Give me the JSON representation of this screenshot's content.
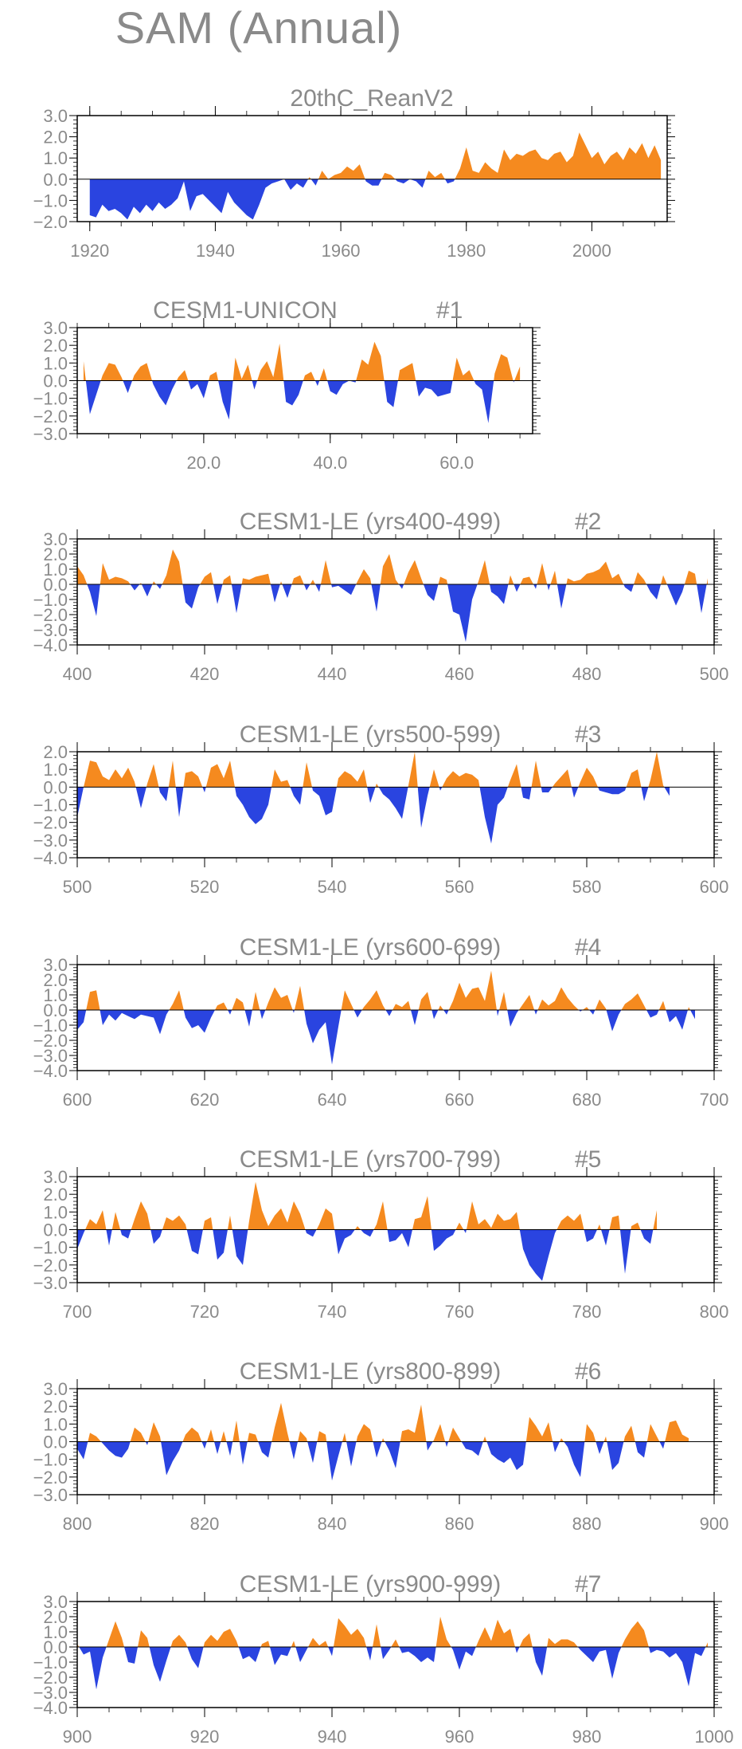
{
  "title": "SAM (Annual)",
  "colors": {
    "positive": "#f58a1f",
    "negative": "#2a44e0",
    "frame": "#000000",
    "text": "#8a8a8a"
  },
  "chart_data": [
    {
      "type": "area",
      "title": "20thC_ReanV2",
      "subtitle": "",
      "xlim": [
        1918,
        2012
      ],
      "ylim": [
        -2.0,
        3.0
      ],
      "yticks": [
        -2.0,
        -1.0,
        0.0,
        1.0,
        2.0,
        3.0
      ],
      "ytick_labels": [
        "−2.0",
        "−1.0",
        "0.0",
        "1.0",
        "2.0",
        "3.0"
      ],
      "xticks": [
        1920,
        1940,
        1960,
        1980,
        2000
      ],
      "xtick_labels": [
        "1920",
        "1940",
        "1960",
        "1980",
        "2000"
      ],
      "x_start": 1920,
      "values": [
        -1.7,
        -1.8,
        -1.2,
        -1.5,
        -1.4,
        -1.6,
        -1.9,
        -1.3,
        -1.6,
        -1.2,
        -1.5,
        -1.1,
        -1.4,
        -1.2,
        -0.9,
        -0.1,
        -1.5,
        -0.8,
        -0.7,
        -1.0,
        -1.3,
        -1.6,
        -0.6,
        -1.1,
        -1.4,
        -1.7,
        -1.9,
        -1.2,
        -0.4,
        -0.2,
        -0.1,
        0.0,
        -0.5,
        -0.2,
        -0.4,
        0.1,
        -0.3,
        0.4,
        0.0,
        0.2,
        0.3,
        0.6,
        0.4,
        0.7,
        -0.1,
        -0.3,
        -0.3,
        0.3,
        0.2,
        -0.1,
        -0.2,
        0.0,
        -0.1,
        -0.4,
        0.4,
        0.1,
        0.3,
        -0.2,
        -0.1,
        0.5,
        1.5,
        0.4,
        0.3,
        0.8,
        0.5,
        0.3,
        1.4,
        0.9,
        1.2,
        1.1,
        1.3,
        1.4,
        1.0,
        0.9,
        1.2,
        1.3,
        0.8,
        1.1,
        2.2,
        1.6,
        1.0,
        1.3,
        0.7,
        1.1,
        1.3,
        0.9,
        1.5,
        1.2,
        1.7,
        1.0,
        1.6,
        0.9
      ]
    },
    {
      "type": "area",
      "title": "CESM1-UNICON",
      "subtitle": "#1",
      "xlim": [
        0,
        72
      ],
      "ylim": [
        -3.0,
        3.0
      ],
      "yticks": [
        -3.0,
        -2.0,
        -1.0,
        0.0,
        1.0,
        2.0,
        3.0
      ],
      "ytick_labels": [
        "−3.0",
        "−2.0",
        "−1.0",
        "0.0",
        "1.0",
        "2.0",
        "3.0"
      ],
      "xticks": [
        20,
        40,
        60
      ],
      "xtick_labels": [
        "20.0",
        "40.0",
        "60.0"
      ],
      "x_start": 1,
      "values": [
        1.1,
        -1.9,
        -0.8,
        0.3,
        1.0,
        0.9,
        0.2,
        -0.7,
        0.3,
        0.8,
        1.0,
        -0.2,
        -0.9,
        -1.4,
        -0.5,
        0.2,
        0.6,
        -0.5,
        -0.2,
        -1.0,
        0.3,
        0.5,
        -1.2,
        -2.2,
        1.3,
        0.1,
        0.9,
        -0.5,
        0.6,
        1.1,
        0.2,
        2.1,
        -1.2,
        -1.4,
        -0.8,
        0.3,
        0.5,
        -0.3,
        0.7,
        -0.6,
        -0.8,
        -0.2,
        0.0,
        -0.1,
        1.2,
        0.9,
        2.2,
        1.4,
        -1.2,
        -1.5,
        0.6,
        0.8,
        1.0,
        -0.9,
        -0.4,
        -0.5,
        -0.9,
        -0.8,
        -0.7,
        1.3,
        0.3,
        0.6,
        -0.2,
        -0.5,
        -2.4,
        0.4,
        1.5,
        1.3,
        -0.1,
        0.8
      ]
    },
    {
      "type": "area",
      "title": "CESM1-LE (yrs400-499)",
      "subtitle": "#2",
      "xlim": [
        400,
        500
      ],
      "ylim": [
        -4.0,
        3.0
      ],
      "yticks": [
        -4.0,
        -3.0,
        -2.0,
        -1.0,
        0.0,
        1.0,
        2.0,
        3.0
      ],
      "ytick_labels": [
        "−4.0",
        "−3.0",
        "−2.0",
        "−1.0",
        "0.0",
        "1.0",
        "2.0",
        "3.0"
      ],
      "xticks": [
        400,
        420,
        440,
        460,
        480,
        500
      ],
      "xtick_labels": [
        "400",
        "420",
        "440",
        "460",
        "480",
        "500"
      ],
      "x_start": 400,
      "values": [
        1.2,
        0.6,
        -0.5,
        -2.1,
        1.4,
        0.3,
        0.5,
        0.4,
        0.2,
        -0.4,
        0.1,
        -0.8,
        0.2,
        -0.3,
        0.6,
        2.3,
        1.5,
        -1.2,
        -1.6,
        -0.2,
        0.5,
        0.8,
        -1.3,
        0.3,
        0.6,
        -1.9,
        0.4,
        0.3,
        0.5,
        0.6,
        0.7,
        -1.2,
        0.2,
        -0.9,
        0.4,
        0.6,
        -0.4,
        0.3,
        -0.5,
        1.6,
        -0.2,
        -0.1,
        -0.4,
        -0.7,
        0.2,
        1.0,
        0.4,
        -1.8,
        1.2,
        2.0,
        0.3,
        -0.3,
        0.8,
        1.6,
        0.4,
        -0.7,
        -1.1,
        0.5,
        0.3,
        -1.8,
        -2.0,
        -3.8,
        -1.0,
        0.2,
        1.6,
        -0.5,
        -0.8,
        -1.3,
        0.6,
        -0.5,
        0.4,
        0.5,
        -0.3,
        1.4,
        -0.4,
        0.9,
        -1.6,
        0.4,
        0.2,
        0.3,
        0.7,
        0.8,
        1.0,
        1.5,
        0.4,
        0.7,
        -0.2,
        -0.5,
        0.8,
        0.3,
        -0.5,
        -1.0,
        0.6,
        -0.4,
        -1.4,
        -0.5,
        0.9,
        0.7,
        -1.9,
        0.4
      ]
    },
    {
      "type": "area",
      "title": "CESM1-LE (yrs500-599)",
      "subtitle": "#3",
      "xlim": [
        500,
        600
      ],
      "ylim": [
        -4.0,
        2.0
      ],
      "yticks": [
        -4.0,
        -3.0,
        -2.0,
        -1.0,
        0.0,
        1.0,
        2.0
      ],
      "ytick_labels": [
        "−4.0",
        "−3.0",
        "−2.0",
        "−1.0",
        "0.0",
        "1.0",
        "2.0"
      ],
      "xticks": [
        500,
        520,
        540,
        560,
        580,
        600
      ],
      "xtick_labels": [
        "500",
        "520",
        "540",
        "560",
        "580",
        "600"
      ],
      "x_start": 500,
      "values": [
        -1.7,
        0.0,
        1.5,
        1.4,
        0.6,
        0.4,
        1.0,
        0.5,
        1.1,
        0.3,
        -1.2,
        0.2,
        1.3,
        -0.3,
        -0.8,
        1.5,
        -1.7,
        0.8,
        0.9,
        0.6,
        -0.3,
        1.1,
        1.3,
        0.5,
        1.5,
        -0.5,
        -1.0,
        -1.7,
        -2.1,
        -1.8,
        -1.0,
        1.0,
        0.3,
        0.4,
        -0.5,
        -1.0,
        1.4,
        -0.2,
        -0.5,
        -1.6,
        -1.4,
        0.5,
        0.9,
        0.7,
        0.3,
        1.0,
        -0.9,
        0.2,
        -0.4,
        -0.7,
        -1.2,
        -1.8,
        0.1,
        2.0,
        -2.3,
        -0.5,
        1.0,
        -0.2,
        0.5,
        0.9,
        0.6,
        0.8,
        0.7,
        0.4,
        -1.7,
        -3.2,
        -1.0,
        -0.6,
        0.4,
        1.3,
        -0.6,
        -0.7,
        1.5,
        -0.3,
        -0.3,
        0.2,
        0.6,
        1.0,
        -0.6,
        0.3,
        1.1,
        0.6,
        -0.2,
        -0.3,
        -0.4,
        -0.4,
        -0.2,
        0.8,
        1.0,
        -0.8,
        0.4,
        2.0,
        0.1,
        -0.5
      ]
    },
    {
      "type": "area",
      "title": "CESM1-LE (yrs600-699)",
      "subtitle": "#4",
      "xlim": [
        600,
        700
      ],
      "ylim": [
        -4.0,
        3.0
      ],
      "yticks": [
        -4.0,
        -3.0,
        -2.0,
        -1.0,
        0.0,
        1.0,
        2.0,
        3.0
      ],
      "ytick_labels": [
        "−4.0",
        "−3.0",
        "−2.0",
        "−1.0",
        "0.0",
        "1.0",
        "2.0",
        "3.0"
      ],
      "xticks": [
        600,
        620,
        640,
        660,
        680,
        700
      ],
      "xtick_labels": [
        "600",
        "620",
        "640",
        "660",
        "680",
        "700"
      ],
      "x_start": 600,
      "values": [
        -1.3,
        -0.8,
        1.2,
        1.3,
        -1.0,
        -0.3,
        -0.7,
        -0.2,
        -0.4,
        -0.6,
        -0.3,
        -0.4,
        -0.5,
        -1.6,
        -0.3,
        0.4,
        1.3,
        -0.5,
        -1.2,
        -1.0,
        -1.5,
        -0.5,
        0.3,
        0.5,
        -0.3,
        0.8,
        0.5,
        -1.1,
        1.2,
        -0.6,
        0.5,
        1.5,
        0.8,
        1.0,
        -0.2,
        1.6,
        -0.9,
        -2.2,
        -1.3,
        -0.8,
        -3.6,
        -1.1,
        1.3,
        0.4,
        -0.5,
        0.2,
        0.7,
        1.3,
        0.3,
        -0.4,
        0.4,
        0.2,
        0.6,
        -1.0,
        0.7,
        1.2,
        -0.6,
        0.3,
        -0.3,
        0.6,
        1.8,
        0.8,
        1.4,
        1.5,
        0.6,
        2.6,
        -0.4,
        1.2,
        -1.1,
        -0.2,
        0.4,
        1.0,
        -0.3,
        0.7,
        0.3,
        0.6,
        1.5,
        0.8,
        0.3,
        -0.1,
        0.2,
        -0.3,
        0.7,
        0.1,
        -1.4,
        -0.3,
        0.4,
        0.7,
        1.1,
        0.3,
        -0.5,
        -0.3,
        0.6,
        -0.8,
        -0.4,
        -1.3,
        0.2,
        -0.6
      ]
    },
    {
      "type": "area",
      "title": "CESM1-LE (yrs700-799)",
      "subtitle": "#5",
      "xlim": [
        700,
        800
      ],
      "ylim": [
        -3.0,
        3.0
      ],
      "yticks": [
        -3.0,
        -2.0,
        -1.0,
        0.0,
        1.0,
        2.0,
        3.0
      ],
      "ytick_labels": [
        "−3.0",
        "−2.0",
        "−1.0",
        "0.0",
        "1.0",
        "2.0",
        "3.0"
      ],
      "xticks": [
        700,
        720,
        740,
        760,
        780,
        800
      ],
      "xtick_labels": [
        "700",
        "720",
        "740",
        "760",
        "780",
        "800"
      ],
      "x_start": 700,
      "values": [
        -1.1,
        -0.2,
        0.6,
        0.3,
        1.1,
        -0.9,
        1.0,
        -0.3,
        -0.5,
        0.6,
        1.6,
        0.9,
        -0.8,
        -0.4,
        0.7,
        0.5,
        0.8,
        0.3,
        -1.2,
        -1.4,
        0.5,
        0.7,
        -1.7,
        -1.3,
        0.8,
        -1.5,
        -2.0,
        0.5,
        2.7,
        1.1,
        0.2,
        0.8,
        1.2,
        0.4,
        1.6,
        0.9,
        -0.2,
        -0.4,
        0.3,
        1.2,
        0.9,
        -1.4,
        -0.5,
        -0.3,
        0.2,
        -0.2,
        -0.4,
        0.3,
        1.6,
        -0.7,
        -0.6,
        -0.2,
        -1.0,
        0.6,
        0.7,
        1.9,
        -1.2,
        -0.9,
        -0.5,
        -0.3,
        0.4,
        -0.2,
        1.6,
        0.3,
        0.6,
        0.1,
        0.9,
        0.5,
        0.6,
        1.0,
        -1.1,
        -2.0,
        -2.5,
        -2.9,
        -1.5,
        -0.2,
        0.5,
        0.8,
        0.5,
        0.9,
        -0.7,
        -0.5,
        0.3,
        -0.9,
        0.7,
        0.8,
        -2.5,
        0.2,
        0.4,
        -0.5,
        -0.8,
        1.1
      ]
    },
    {
      "type": "area",
      "title": "CESM1-LE (yrs800-899)",
      "subtitle": "#6",
      "xlim": [
        800,
        900
      ],
      "ylim": [
        -3.0,
        3.0
      ],
      "yticks": [
        -3.0,
        -2.0,
        -1.0,
        0.0,
        1.0,
        2.0,
        3.0
      ],
      "ytick_labels": [
        "−3.0",
        "−2.0",
        "−1.0",
        "0.0",
        "1.0",
        "2.0",
        "3.0"
      ],
      "xticks": [
        800,
        820,
        840,
        860,
        880,
        900
      ],
      "xtick_labels": [
        "800",
        "820",
        "840",
        "860",
        "880",
        "900"
      ],
      "x_start": 800,
      "values": [
        -0.4,
        -1.0,
        0.5,
        0.3,
        -0.1,
        -0.5,
        -0.8,
        -0.9,
        -0.4,
        0.8,
        0.5,
        -0.2,
        1.1,
        0.3,
        -1.9,
        -1.1,
        -0.5,
        0.4,
        0.8,
        0.5,
        -0.4,
        0.7,
        -0.7,
        0.6,
        -0.8,
        1.2,
        -1.3,
        0.5,
        0.4,
        -0.6,
        -0.9,
        0.8,
        2.2,
        0.5,
        -1.0,
        0.6,
        0.2,
        -1.2,
        0.6,
        0.4,
        -2.2,
        -0.8,
        0.5,
        -1.4,
        0.3,
        1.0,
        0.7,
        -0.9,
        0.2,
        -0.5,
        -1.5,
        0.6,
        0.7,
        0.5,
        2.1,
        -0.5,
        0.1,
        1.0,
        -0.3,
        0.8,
        0.2,
        -0.4,
        -0.5,
        -0.8,
        0.3,
        -0.7,
        -1.0,
        -1.2,
        -0.9,
        -1.6,
        -1.3,
        1.4,
        0.9,
        0.3,
        1.1,
        -0.6,
        0.2,
        -0.3,
        -1.3,
        -2.0,
        1.0,
        0.5,
        -0.7,
        0.3,
        -1.6,
        -1.2,
        0.3,
        0.9,
        -0.6,
        -0.9,
        1.0,
        0.3,
        -0.4,
        1.1,
        1.2,
        0.4,
        0.2
      ]
    },
    {
      "type": "area",
      "title": "CESM1-LE (yrs900-999)",
      "subtitle": "#7",
      "xlim": [
        900,
        1000
      ],
      "ylim": [
        -4.0,
        3.0
      ],
      "yticks": [
        -4.0,
        -3.0,
        -2.0,
        -1.0,
        0.0,
        1.0,
        2.0,
        3.0
      ],
      "ytick_labels": [
        "−4.0",
        "−3.0",
        "−2.0",
        "−1.0",
        "0.0",
        "1.0",
        "2.0",
        "3.0"
      ],
      "xticks": [
        900,
        920,
        940,
        960,
        980,
        1000
      ],
      "xtick_labels": [
        "900",
        "920",
        "940",
        "960",
        "980",
        "1000"
      ],
      "x_start": 900,
      "values": [
        0.2,
        -0.5,
        -0.3,
        -2.8,
        -0.7,
        0.5,
        1.7,
        0.6,
        -1.0,
        -1.1,
        1.1,
        0.6,
        -1.2,
        -2.3,
        -0.9,
        0.4,
        0.8,
        0.3,
        -0.8,
        -1.4,
        0.3,
        0.8,
        0.4,
        1.0,
        1.2,
        0.4,
        -0.8,
        -0.6,
        -1.0,
        0.2,
        0.4,
        -1.2,
        -0.5,
        -0.6,
        0.4,
        -1.0,
        -0.2,
        0.6,
        0.1,
        0.4,
        -0.6,
        1.9,
        1.4,
        0.8,
        1.2,
        0.6,
        -0.9,
        1.5,
        -0.8,
        -0.2,
        0.5,
        -0.4,
        -0.3,
        -0.6,
        -1.0,
        -0.7,
        -1.0,
        2.0,
        0.5,
        -0.2,
        -1.5,
        -0.3,
        -0.6,
        0.4,
        1.3,
        0.4,
        1.8,
        0.9,
        1.2,
        -0.4,
        0.5,
        0.9,
        -1.0,
        -1.9,
        0.6,
        0.2,
        0.5,
        0.5,
        0.3,
        -0.2,
        -0.6,
        -1.0,
        -0.3,
        -0.2,
        -2.1,
        -0.4,
        0.5,
        1.2,
        1.7,
        1.1,
        -0.4,
        -0.2,
        -0.3,
        -0.7,
        -0.4,
        -1.0,
        -2.6,
        -0.4,
        -0.6,
        0.3
      ]
    }
  ]
}
